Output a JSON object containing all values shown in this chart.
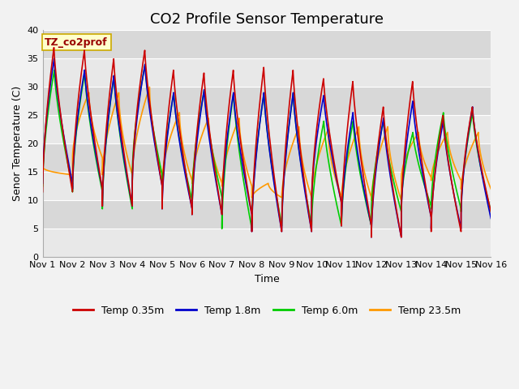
{
  "title": "CO2 Profile Sensor Temperature",
  "xlabel": "Time",
  "ylabel": "Senor Temperature (C)",
  "ylim": [
    0,
    40
  ],
  "xlim": [
    0,
    15
  ],
  "x_tick_labels": [
    "Nov 1",
    "Nov 2",
    "Nov 3",
    "Nov 4",
    "Nov 5",
    "Nov 6",
    "Nov 7",
    "Nov 8",
    "Nov 9",
    "Nov 10",
    "Nov 11",
    "Nov 12",
    "Nov 13",
    "Nov 14",
    "Nov 15",
    "Nov 16"
  ],
  "legend_labels": [
    "Temp 0.35m",
    "Temp 1.8m",
    "Temp 6.0m",
    "Temp 23.5m"
  ],
  "line_colors": [
    "#cc0000",
    "#0000cc",
    "#00cc00",
    "#ff9900"
  ],
  "annotation_text": "TZ_co2prof",
  "annotation_color": "#990000",
  "annotation_bg": "#ffffcc",
  "annotation_border": "#ccaa00",
  "bg_light": "#e8e8e8",
  "bg_dark": "#d8d8d8",
  "grid_color": "#ffffff",
  "title_fontsize": 13,
  "label_fontsize": 9,
  "tick_fontsize": 8,
  "legend_fontsize": 9,
  "n_per_day": 500,
  "days": 15,
  "peak_positions": [
    0.38,
    0.4,
    0.38,
    0.42,
    0.38,
    0.4,
    0.38,
    0.4,
    0.38,
    0.4,
    0.38,
    0.4,
    0.38,
    0.4,
    0.38
  ],
  "daily_peaks_035": [
    37.0,
    36.5,
    35.0,
    36.5,
    33.0,
    32.5,
    33.0,
    33.5,
    33.0,
    31.5,
    31.0,
    26.5,
    31.0,
    25.0,
    26.5
  ],
  "daily_peaks_18": [
    35.0,
    33.0,
    32.0,
    34.0,
    29.0,
    29.5,
    29.0,
    29.0,
    29.0,
    28.5,
    25.5,
    24.5,
    27.5,
    24.0,
    26.5
  ],
  "daily_peaks_60": [
    33.0,
    32.5,
    32.0,
    34.0,
    29.0,
    29.5,
    29.0,
    29.0,
    29.0,
    24.0,
    24.0,
    24.0,
    22.0,
    25.5,
    25.5
  ],
  "daily_mins_035": [
    11.5,
    12.0,
    9.0,
    12.5,
    8.5,
    7.5,
    7.5,
    4.5,
    4.5,
    9.5,
    5.5,
    3.5,
    7.0,
    4.5,
    8.0
  ],
  "daily_mins_18": [
    13.0,
    12.0,
    9.0,
    12.5,
    8.5,
    7.5,
    7.5,
    4.5,
    4.5,
    9.5,
    5.5,
    3.5,
    7.0,
    5.0,
    6.8
  ],
  "daily_mins_60": [
    12.5,
    11.5,
    8.5,
    14.5,
    10.0,
    10.5,
    5.0,
    5.5,
    5.5,
    5.5,
    5.5,
    8.0,
    9.0,
    8.5,
    8.0
  ],
  "daily_peaks_235": [
    16.0,
    29.0,
    29.0,
    30.0,
    25.5,
    24.5,
    24.5,
    13.0,
    23.0,
    22.5,
    23.0,
    23.0,
    22.0,
    22.0,
    22.0
  ],
  "daily_mins_235": [
    14.5,
    17.5,
    14.5,
    14.5,
    13.5,
    13.0,
    12.5,
    10.5,
    10.5,
    10.5,
    10.5,
    10.0,
    14.0,
    13.5,
    12.0
  ],
  "peak_offsets_235": [
    0.55,
    0.55,
    0.55,
    0.58,
    0.58,
    0.55,
    0.58,
    0.55,
    0.58,
    0.55,
    0.58,
    0.55,
    0.58,
    0.55,
    0.58
  ]
}
